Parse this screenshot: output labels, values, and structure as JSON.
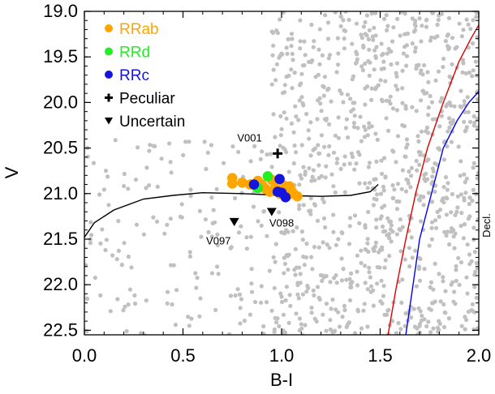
{
  "chart_data": {
    "type": "scatter",
    "title": "",
    "xlabel": "B-I",
    "ylabel": "V",
    "xlim": [
      0.0,
      2.0
    ],
    "ylim": [
      22.55,
      19.0
    ],
    "y_inverted": true,
    "grid": false,
    "xticks": [
      {
        "value": 0.0,
        "label": "0.0"
      },
      {
        "value": 0.5,
        "label": "0.5"
      },
      {
        "value": 1.0,
        "label": "1.0"
      },
      {
        "value": 1.5,
        "label": "1.5"
      },
      {
        "value": 2.0,
        "label": "2.0"
      }
    ],
    "yticks": [
      {
        "value": 19.0,
        "label": "19.0"
      },
      {
        "value": 19.5,
        "label": "19.5"
      },
      {
        "value": 20.0,
        "label": "20.0"
      },
      {
        "value": 20.5,
        "label": "20.5"
      },
      {
        "value": 21.0,
        "label": "21.0"
      },
      {
        "value": 21.5,
        "label": "21.5"
      },
      {
        "value": 22.0,
        "label": "22.0"
      },
      {
        "value": 22.5,
        "label": "22.5"
      }
    ],
    "legend": {
      "placement": "top-left",
      "entries": [
        {
          "label": "RRab",
          "marker": "circle",
          "color": "#ffa500",
          "text_color": "#ffa500"
        },
        {
          "label": "RRd",
          "marker": "circle",
          "color": "#22ee22",
          "text_color": "#22ee22"
        },
        {
          "label": "RRc",
          "marker": "circle",
          "color": "#1515dd",
          "text_color": "#1515dd"
        },
        {
          "label": "Peculiar",
          "marker": "plus",
          "color": "#000000",
          "text_color": "#000000"
        },
        {
          "label": "Uncertain",
          "marker": "triangle-down",
          "color": "#000000",
          "text_color": "#000000"
        }
      ]
    },
    "side_label": "Decl.",
    "series": [
      {
        "name": "RRab",
        "color": "#ffa500",
        "marker": "circle",
        "points": [
          {
            "x": 0.75,
            "y": 20.83
          },
          {
            "x": 0.75,
            "y": 20.89
          },
          {
            "x": 0.8,
            "y": 20.88
          },
          {
            "x": 0.84,
            "y": 20.9
          },
          {
            "x": 0.88,
            "y": 20.86
          },
          {
            "x": 0.9,
            "y": 20.9
          },
          {
            "x": 0.92,
            "y": 20.95
          },
          {
            "x": 0.95,
            "y": 20.85
          },
          {
            "x": 0.97,
            "y": 20.92
          },
          {
            "x": 0.98,
            "y": 20.88
          },
          {
            "x": 1.0,
            "y": 20.95
          },
          {
            "x": 1.01,
            "y": 20.91
          },
          {
            "x": 1.02,
            "y": 20.98
          },
          {
            "x": 1.04,
            "y": 20.92
          },
          {
            "x": 1.05,
            "y": 20.97
          },
          {
            "x": 1.06,
            "y": 21.0
          },
          {
            "x": 1.08,
            "y": 21.03
          },
          {
            "x": 1.03,
            "y": 21.02
          },
          {
            "x": 0.99,
            "y": 21.0
          },
          {
            "x": 0.94,
            "y": 20.98
          }
        ]
      },
      {
        "name": "RRd",
        "color": "#22ee22",
        "marker": "circle",
        "points": [
          {
            "x": 0.88,
            "y": 20.94
          },
          {
            "x": 0.93,
            "y": 20.81
          },
          {
            "x": 0.87,
            "y": 20.92
          }
        ]
      },
      {
        "name": "RRc",
        "color": "#1515dd",
        "marker": "circle",
        "points": [
          {
            "x": 0.86,
            "y": 20.9
          },
          {
            "x": 0.99,
            "y": 20.84
          },
          {
            "x": 0.98,
            "y": 20.98
          },
          {
            "x": 1.02,
            "y": 21.04
          },
          {
            "x": 1.0,
            "y": 20.99
          }
        ]
      },
      {
        "name": "Peculiar",
        "color": "#000000",
        "marker": "plus",
        "points": [
          {
            "x": 0.98,
            "y": 20.56
          }
        ]
      },
      {
        "name": "Uncertain",
        "color": "#000000",
        "marker": "triangle-down",
        "points": [
          {
            "x": 0.76,
            "y": 21.31
          },
          {
            "x": 0.95,
            "y": 21.2
          }
        ]
      }
    ],
    "annotations": [
      {
        "text": "V001",
        "x": 0.9,
        "y": 20.43,
        "anchor": "end"
      },
      {
        "text": "V097",
        "x": 0.68,
        "y": 21.56,
        "anchor": "middle"
      },
      {
        "text": "V098",
        "x": 1.0,
        "y": 21.36,
        "anchor": "middle"
      }
    ],
    "curves": [
      {
        "name": "",
        "color": "#000000",
        "points": [
          [
            0.0,
            21.48
          ],
          [
            0.05,
            21.32
          ],
          [
            0.15,
            21.18
          ],
          [
            0.3,
            21.06
          ],
          [
            0.45,
            21.02
          ],
          [
            0.6,
            20.99
          ],
          [
            0.8,
            21.0
          ],
          [
            1.0,
            21.02
          ],
          [
            1.2,
            21.03
          ],
          [
            1.35,
            21.02
          ],
          [
            1.45,
            20.98
          ],
          [
            1.49,
            20.9
          ]
        ]
      },
      {
        "name": "",
        "color": "#e00000",
        "points": [
          [
            1.54,
            22.55
          ],
          [
            1.58,
            22.05
          ],
          [
            1.63,
            21.5
          ],
          [
            1.68,
            21.0
          ],
          [
            1.74,
            20.5
          ],
          [
            1.82,
            20.0
          ],
          [
            1.9,
            19.55
          ],
          [
            1.96,
            19.3
          ],
          [
            2.0,
            19.15
          ]
        ]
      },
      {
        "name": "",
        "color": "#0000ee",
        "points": [
          [
            1.63,
            22.55
          ],
          [
            1.66,
            22.1
          ],
          [
            1.7,
            21.5
          ],
          [
            1.76,
            21.0
          ],
          [
            1.82,
            20.5
          ],
          [
            1.89,
            20.2
          ],
          [
            1.95,
            20.0
          ],
          [
            2.0,
            19.88
          ]
        ]
      }
    ],
    "background_points_color": "#c0c0c0"
  }
}
